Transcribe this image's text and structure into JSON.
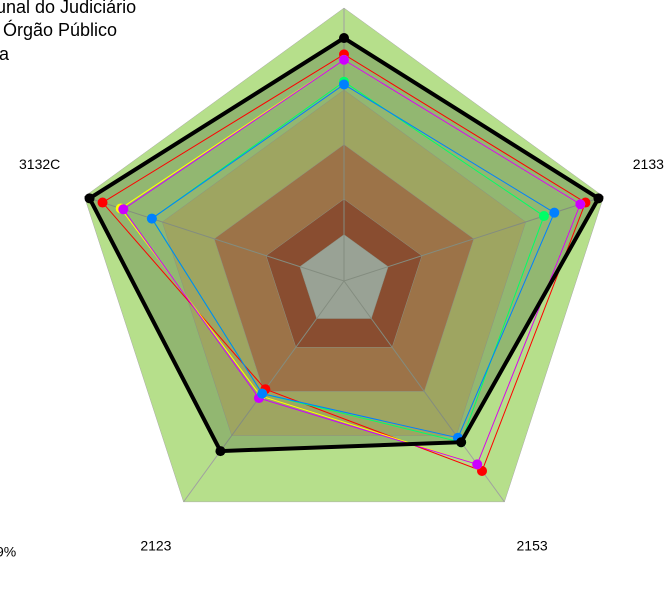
{
  "chart_data": {
    "type": "radar",
    "categories": [
      null,
      "2133",
      "2153",
      "2123",
      "3132C"
    ],
    "rlim": [
      0,
      100
    ],
    "bands": [
      {
        "value": 100,
        "color": "#b6df8b"
      },
      {
        "value": 70,
        "color": "#c8c573"
      },
      {
        "value": 50,
        "color": "#c47b4e"
      },
      {
        "value": 30,
        "color": "#a8432c"
      },
      {
        "value": 17,
        "color": "#c0c0c0"
      }
    ],
    "series": [
      {
        "color": "#000000",
        "values": [
          89,
          98,
          73,
          77,
          98
        ],
        "fill": "rgba(70,100,60,0.32)"
      },
      {
        "color": "#ff0000",
        "values": [
          83,
          93,
          86,
          49,
          93
        ]
      },
      {
        "color": "#ffff00",
        "values": [
          81,
          91,
          83,
          52,
          86
        ]
      },
      {
        "color": "#cc00ff",
        "values": [
          81,
          91,
          83,
          53,
          85
        ]
      },
      {
        "color": "#00ff66",
        "values": [
          73,
          77,
          73,
          51,
          74
        ]
      },
      {
        "color": "#0080ff",
        "values": [
          72,
          81,
          71,
          51,
          74
        ]
      }
    ],
    "annotations": [
      "unal do Judiciário",
      "Órgão Público",
      "ta",
      "9%"
    ]
  }
}
